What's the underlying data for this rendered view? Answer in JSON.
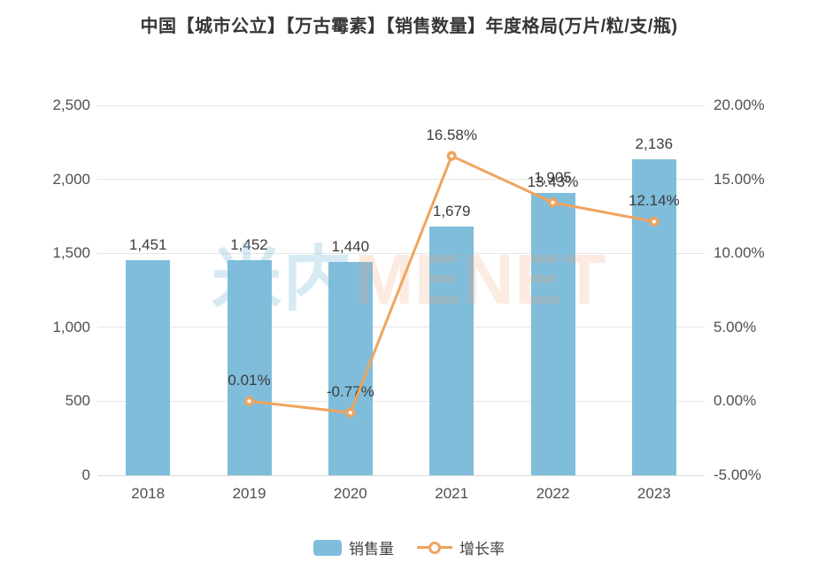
{
  "title": "中国【城市公立】【万古霉素】【销售数量】年度格局(万片/粒/支/瓶)",
  "watermark": {
    "part1": "米内",
    "part2": "MENET"
  },
  "legend": [
    {
      "label": "销售量",
      "type": "bar"
    },
    {
      "label": "增长率",
      "type": "line"
    }
  ],
  "colors": {
    "bar": "#7FBDDB",
    "line": "#EFA45E",
    "title_text": "#363636",
    "axis_text": "#4F4F4F",
    "label_text": "#3C3C3C",
    "gridline": "#E6E6E6",
    "watermark_blue": "rgba(123,186,217,0.30)",
    "watermark_pink": "rgba(242,163,115,0.22)"
  },
  "chart_data": {
    "type": "bar+line",
    "categories": [
      "2018",
      "2019",
      "2020",
      "2021",
      "2022",
      "2023"
    ],
    "series": [
      {
        "name": "销售量",
        "type": "bar",
        "axis": "left",
        "values": [
          1451,
          1452,
          1440,
          1679,
          1905,
          2136
        ],
        "labels": [
          "1,451",
          "1,452",
          "1,440",
          "1,679",
          "1,905",
          "2,136"
        ]
      },
      {
        "name": "增长率",
        "type": "line",
        "axis": "right",
        "values": [
          null,
          0.01,
          -0.77,
          16.58,
          13.43,
          12.14
        ],
        "labels": [
          null,
          "0.01%",
          "-0.77%",
          "16.58%",
          "13.43%",
          "12.14%"
        ]
      }
    ],
    "left_axis": {
      "min": 0,
      "max": 2500,
      "ticks": [
        "0",
        "500",
        "1,000",
        "1,500",
        "2,000",
        "2,500"
      ]
    },
    "right_axis": {
      "min": -5,
      "max": 20,
      "ticks": [
        "-5.00%",
        "0.00%",
        "5.00%",
        "10.00%",
        "15.00%",
        "20.00%"
      ]
    },
    "grid": true,
    "legend_position": "bottom"
  }
}
